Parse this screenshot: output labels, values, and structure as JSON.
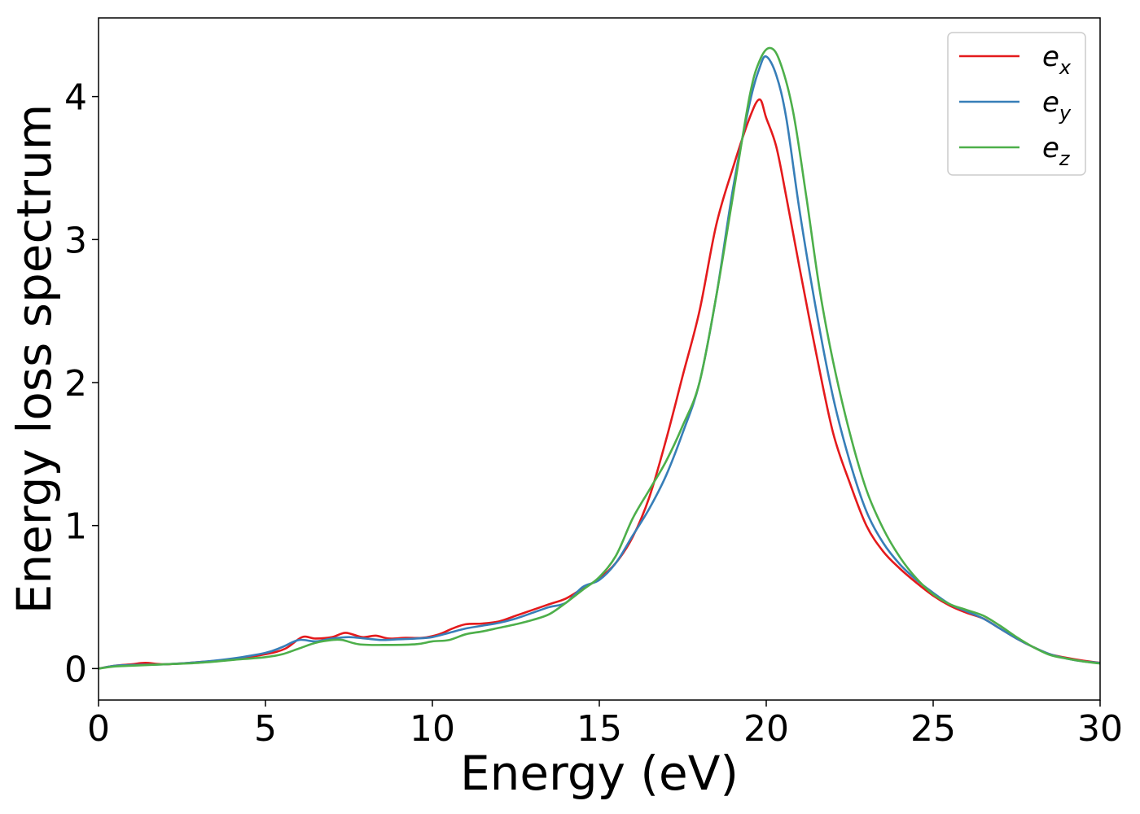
{
  "chart_data": {
    "type": "line",
    "xlabel": "Energy (eV)",
    "ylabel": "Energy loss spectrum",
    "xlim": [
      0,
      30
    ],
    "ylim": [
      -0.22,
      4.55
    ],
    "xticks": [
      0,
      5,
      10,
      15,
      20,
      25,
      30
    ],
    "xtick_labels": [
      "0",
      "5",
      "10",
      "15",
      "20",
      "25",
      "30"
    ],
    "yticks": [
      0,
      1,
      2,
      3,
      4
    ],
    "ytick_labels": [
      "0",
      "1",
      "2",
      "3",
      "4"
    ],
    "grid": false,
    "legend_position": "top-right",
    "series": [
      {
        "name": "e_x",
        "legend_base": "e",
        "legend_sub": "x",
        "color": "#e41a1c",
        "points": [
          [
            0,
            0
          ],
          [
            0.5,
            0.02
          ],
          [
            1,
            0.03
          ],
          [
            1.4,
            0.04
          ],
          [
            2,
            0.03
          ],
          [
            3,
            0.045
          ],
          [
            4,
            0.065
          ],
          [
            5,
            0.1
          ],
          [
            5.6,
            0.14
          ],
          [
            6.1,
            0.22
          ],
          [
            6.5,
            0.21
          ],
          [
            7,
            0.22
          ],
          [
            7.4,
            0.25
          ],
          [
            7.9,
            0.22
          ],
          [
            8.3,
            0.23
          ],
          [
            8.7,
            0.21
          ],
          [
            9.2,
            0.215
          ],
          [
            9.7,
            0.215
          ],
          [
            10.2,
            0.24
          ],
          [
            10.6,
            0.28
          ],
          [
            11,
            0.31
          ],
          [
            11.5,
            0.315
          ],
          [
            12,
            0.33
          ],
          [
            12.5,
            0.37
          ],
          [
            13,
            0.41
          ],
          [
            13.5,
            0.45
          ],
          [
            14,
            0.49
          ],
          [
            14.5,
            0.56
          ],
          [
            15,
            0.63
          ],
          [
            15.5,
            0.74
          ],
          [
            16,
            0.92
          ],
          [
            16.5,
            1.2
          ],
          [
            17,
            1.6
          ],
          [
            17.5,
            2.05
          ],
          [
            18,
            2.5
          ],
          [
            18.5,
            3.1
          ],
          [
            19,
            3.5
          ],
          [
            19.5,
            3.85
          ],
          [
            19.8,
            3.98
          ],
          [
            20,
            3.85
          ],
          [
            20.3,
            3.65
          ],
          [
            20.6,
            3.3
          ],
          [
            21,
            2.8
          ],
          [
            21.5,
            2.2
          ],
          [
            22,
            1.65
          ],
          [
            22.5,
            1.3
          ],
          [
            23,
            1.0
          ],
          [
            23.5,
            0.82
          ],
          [
            24,
            0.7
          ],
          [
            24.5,
            0.6
          ],
          [
            25,
            0.51
          ],
          [
            25.5,
            0.44
          ],
          [
            26,
            0.39
          ],
          [
            26.5,
            0.35
          ],
          [
            27,
            0.28
          ],
          [
            27.5,
            0.21
          ],
          [
            28,
            0.15
          ],
          [
            28.5,
            0.1
          ],
          [
            29,
            0.075
          ],
          [
            29.5,
            0.055
          ],
          [
            30,
            0.04
          ]
        ]
      },
      {
        "name": "e_y",
        "legend_base": "e",
        "legend_sub": "y",
        "color": "#377eb8",
        "points": [
          [
            0,
            0
          ],
          [
            0.5,
            0.02
          ],
          [
            1,
            0.025
          ],
          [
            2,
            0.03
          ],
          [
            3,
            0.045
          ],
          [
            4,
            0.07
          ],
          [
            5,
            0.11
          ],
          [
            5.5,
            0.15
          ],
          [
            6,
            0.2
          ],
          [
            6.5,
            0.19
          ],
          [
            7,
            0.21
          ],
          [
            7.5,
            0.22
          ],
          [
            8,
            0.21
          ],
          [
            8.5,
            0.2
          ],
          [
            9,
            0.205
          ],
          [
            9.5,
            0.21
          ],
          [
            10,
            0.22
          ],
          [
            10.5,
            0.25
          ],
          [
            11,
            0.28
          ],
          [
            11.5,
            0.3
          ],
          [
            12,
            0.32
          ],
          [
            12.5,
            0.35
          ],
          [
            13,
            0.39
          ],
          [
            13.5,
            0.43
          ],
          [
            14,
            0.46
          ],
          [
            14.5,
            0.57
          ],
          [
            15,
            0.62
          ],
          [
            15.5,
            0.74
          ],
          [
            16,
            0.93
          ],
          [
            16.5,
            1.12
          ],
          [
            17,
            1.35
          ],
          [
            17.5,
            1.65
          ],
          [
            18,
            2.0
          ],
          [
            18.5,
            2.6
          ],
          [
            19,
            3.35
          ],
          [
            19.5,
            3.95
          ],
          [
            19.8,
            4.2
          ],
          [
            20,
            4.28
          ],
          [
            20.3,
            4.15
          ],
          [
            20.6,
            3.85
          ],
          [
            21,
            3.2
          ],
          [
            21.5,
            2.5
          ],
          [
            22,
            1.9
          ],
          [
            22.5,
            1.45
          ],
          [
            23,
            1.1
          ],
          [
            23.5,
            0.88
          ],
          [
            24,
            0.73
          ],
          [
            24.5,
            0.62
          ],
          [
            25,
            0.53
          ],
          [
            25.5,
            0.45
          ],
          [
            26,
            0.4
          ],
          [
            26.5,
            0.35
          ],
          [
            27,
            0.28
          ],
          [
            27.5,
            0.21
          ],
          [
            28,
            0.15
          ],
          [
            28.5,
            0.1
          ],
          [
            29,
            0.07
          ],
          [
            29.5,
            0.05
          ],
          [
            30,
            0.04
          ]
        ]
      },
      {
        "name": "e_z",
        "legend_base": "e",
        "legend_sub": "z",
        "color": "#4daf4a",
        "points": [
          [
            0,
            0
          ],
          [
            0.5,
            0.015
          ],
          [
            1,
            0.02
          ],
          [
            2,
            0.03
          ],
          [
            3,
            0.04
          ],
          [
            4,
            0.06
          ],
          [
            5,
            0.08
          ],
          [
            5.5,
            0.1
          ],
          [
            6,
            0.14
          ],
          [
            6.5,
            0.18
          ],
          [
            7,
            0.2
          ],
          [
            7.3,
            0.2
          ],
          [
            7.8,
            0.17
          ],
          [
            8.5,
            0.165
          ],
          [
            9.5,
            0.17
          ],
          [
            10,
            0.19
          ],
          [
            10.5,
            0.2
          ],
          [
            11,
            0.24
          ],
          [
            11.5,
            0.26
          ],
          [
            12,
            0.285
          ],
          [
            12.5,
            0.31
          ],
          [
            13,
            0.34
          ],
          [
            13.5,
            0.38
          ],
          [
            14,
            0.46
          ],
          [
            14.5,
            0.55
          ],
          [
            15,
            0.64
          ],
          [
            15.5,
            0.79
          ],
          [
            16,
            1.05
          ],
          [
            16.5,
            1.25
          ],
          [
            17,
            1.45
          ],
          [
            17.5,
            1.7
          ],
          [
            18,
            2.0
          ],
          [
            18.5,
            2.6
          ],
          [
            19,
            3.3
          ],
          [
            19.5,
            4.0
          ],
          [
            19.8,
            4.25
          ],
          [
            20.1,
            4.34
          ],
          [
            20.4,
            4.25
          ],
          [
            20.8,
            3.9
          ],
          [
            21.2,
            3.3
          ],
          [
            21.6,
            2.65
          ],
          [
            22,
            2.15
          ],
          [
            22.5,
            1.65
          ],
          [
            23,
            1.25
          ],
          [
            23.5,
            0.98
          ],
          [
            24,
            0.78
          ],
          [
            24.5,
            0.63
          ],
          [
            25,
            0.52
          ],
          [
            25.5,
            0.45
          ],
          [
            26,
            0.41
          ],
          [
            26.5,
            0.37
          ],
          [
            27,
            0.3
          ],
          [
            27.5,
            0.22
          ],
          [
            28,
            0.15
          ],
          [
            28.5,
            0.095
          ],
          [
            29,
            0.07
          ],
          [
            29.5,
            0.05
          ],
          [
            30,
            0.035
          ]
        ]
      }
    ]
  }
}
